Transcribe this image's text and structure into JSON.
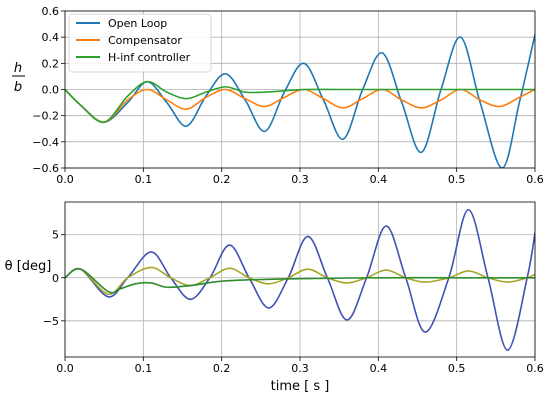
{
  "chart_data": [
    {
      "type": "line",
      "title": "",
      "xlabel": "",
      "ylabel": "h / b",
      "ylabel_numerator": "h",
      "ylabel_denominator": "b",
      "xlim": [
        0.0,
        0.6
      ],
      "ylim": [
        -0.6,
        0.6
      ],
      "xticks": [
        "0.0",
        "0.1",
        "0.2",
        "0.3",
        "0.4",
        "0.5",
        "0.6"
      ],
      "yticks": [
        "0.6",
        "0.4",
        "0.2",
        "0.0",
        "−0.2",
        "−0.4",
        "−0.6"
      ],
      "grid": true,
      "legend_position": "top-left",
      "series": [
        {
          "name": "Open Loop",
          "color": "#1f77b4",
          "x": [
            0.0,
            0.02,
            0.05,
            0.08,
            0.105,
            0.13,
            0.155,
            0.18,
            0.205,
            0.23,
            0.255,
            0.28,
            0.305,
            0.33,
            0.355,
            0.38,
            0.405,
            0.43,
            0.455,
            0.48,
            0.505,
            0.53,
            0.558,
            0.58,
            0.6
          ],
          "values": [
            0.0,
            -0.12,
            -0.25,
            -0.1,
            0.06,
            -0.1,
            -0.28,
            -0.05,
            0.12,
            -0.08,
            -0.32,
            -0.02,
            0.2,
            -0.08,
            -0.38,
            0.0,
            0.28,
            -0.1,
            -0.48,
            0.0,
            0.4,
            -0.1,
            -0.6,
            -0.1,
            0.42
          ]
        },
        {
          "name": "Compensator",
          "color": "#ff7f0e",
          "x": [
            0.0,
            0.02,
            0.05,
            0.08,
            0.105,
            0.13,
            0.155,
            0.18,
            0.205,
            0.23,
            0.255,
            0.28,
            0.305,
            0.33,
            0.355,
            0.38,
            0.405,
            0.43,
            0.455,
            0.48,
            0.505,
            0.53,
            0.555,
            0.58,
            0.6
          ],
          "values": [
            0.0,
            -0.12,
            -0.25,
            -0.08,
            0.0,
            -0.08,
            -0.15,
            -0.06,
            0.0,
            -0.07,
            -0.13,
            -0.06,
            0.0,
            -0.07,
            -0.14,
            -0.07,
            0.0,
            -0.08,
            -0.14,
            -0.08,
            0.0,
            -0.08,
            -0.13,
            -0.06,
            0.0
          ]
        },
        {
          "name": "H-inf controller",
          "color": "#2ca02c",
          "x": [
            0.0,
            0.02,
            0.05,
            0.08,
            0.105,
            0.13,
            0.155,
            0.18,
            0.205,
            0.23,
            0.255,
            0.28,
            0.305,
            0.35,
            0.4,
            0.45,
            0.5,
            0.55,
            0.6
          ],
          "values": [
            0.0,
            -0.12,
            -0.25,
            -0.05,
            0.06,
            -0.02,
            -0.07,
            -0.02,
            0.02,
            -0.02,
            -0.02,
            -0.01,
            0.0,
            0.0,
            0.0,
            0.0,
            0.0,
            0.0,
            0.0
          ]
        }
      ]
    },
    {
      "type": "line",
      "title": "",
      "xlabel": "time [ s ]",
      "ylabel": "θ [deg]",
      "xlim": [
        0.0,
        0.6
      ],
      "ylim": [
        -9.2,
        8.8
      ],
      "xticks": [
        "0.0",
        "0.1",
        "0.2",
        "0.3",
        "0.4",
        "0.5",
        "0.6"
      ],
      "yticks": [
        "5",
        "0",
        "−5"
      ],
      "grid": true,
      "series": [
        {
          "name": "",
          "color": "#3f51b5",
          "x": [
            0.0,
            0.02,
            0.055,
            0.08,
            0.11,
            0.135,
            0.16,
            0.185,
            0.21,
            0.235,
            0.26,
            0.285,
            0.31,
            0.335,
            0.36,
            0.385,
            0.41,
            0.435,
            0.46,
            0.49,
            0.515,
            0.54,
            0.565,
            0.59,
            0.6
          ],
          "values": [
            0.0,
            1.0,
            -2.2,
            0.0,
            3.0,
            0.0,
            -2.5,
            0.0,
            3.8,
            0.0,
            -3.5,
            0.0,
            4.8,
            0.0,
            -4.9,
            0.0,
            6.0,
            0.0,
            -6.3,
            0.0,
            7.9,
            0.0,
            -8.4,
            0.0,
            5.2
          ]
        },
        {
          "name": "",
          "color": "#a6a626",
          "x": [
            0.0,
            0.02,
            0.055,
            0.08,
            0.11,
            0.135,
            0.16,
            0.185,
            0.21,
            0.235,
            0.26,
            0.285,
            0.31,
            0.335,
            0.36,
            0.385,
            0.41,
            0.435,
            0.46,
            0.49,
            0.515,
            0.54,
            0.565,
            0.59,
            0.6
          ],
          "values": [
            0.0,
            1.0,
            -1.9,
            0.0,
            1.2,
            0.0,
            -0.9,
            0.0,
            1.1,
            0.0,
            -0.7,
            0.0,
            1.0,
            0.0,
            -0.6,
            0.0,
            0.9,
            0.0,
            -0.5,
            0.0,
            0.8,
            0.0,
            -0.5,
            0.0,
            0.4
          ]
        },
        {
          "name": "",
          "color": "#2e8b2e",
          "x": [
            0.0,
            0.02,
            0.055,
            0.07,
            0.09,
            0.11,
            0.13,
            0.16,
            0.2,
            0.25,
            0.3,
            0.4,
            0.5,
            0.6
          ],
          "values": [
            0.0,
            1.0,
            -1.6,
            -1.3,
            -0.7,
            -0.6,
            -1.1,
            -0.9,
            -0.4,
            -0.2,
            -0.1,
            0.0,
            0.0,
            0.0
          ]
        }
      ]
    }
  ]
}
